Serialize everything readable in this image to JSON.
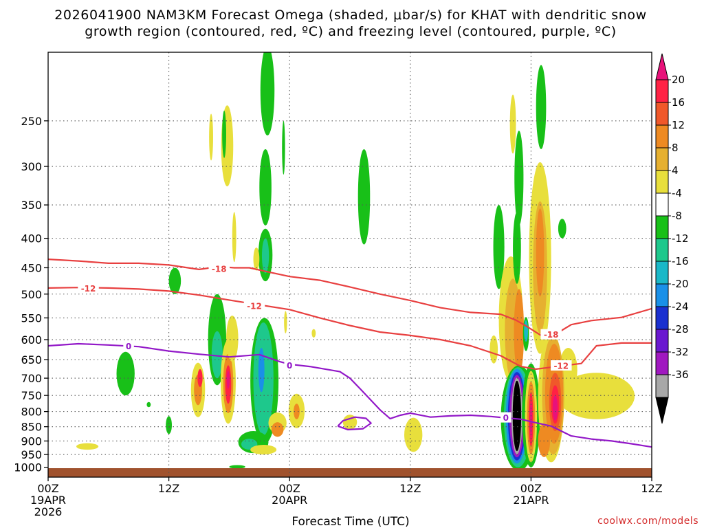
{
  "chart_data": {
    "type": "heatmap",
    "title_line1": "2026041900 NAM3KM Forecast Omega (shaded, μbar/s) for KHAT with dendritic snow",
    "title_line2": "growth region (contoured, red, ºC) and freezing level (contoured, purple, ºC)",
    "xlabel": "Forecast Time (UTC)",
    "credit": "coolwx.com/models",
    "x_axis": {
      "range_hours": [
        0,
        60
      ],
      "ticks": [
        {
          "hour": 0,
          "label": "00Z",
          "sub1": "19APR",
          "sub2": "2026"
        },
        {
          "hour": 12,
          "label": "12Z",
          "sub1": "",
          "sub2": ""
        },
        {
          "hour": 24,
          "label": "00Z",
          "sub1": "20APR",
          "sub2": ""
        },
        {
          "hour": 36,
          "label": "12Z",
          "sub1": "",
          "sub2": ""
        },
        {
          "hour": 48,
          "label": "00Z",
          "sub1": "21APR",
          "sub2": ""
        },
        {
          "hour": 60,
          "label": "12Z",
          "sub1": "",
          "sub2": ""
        }
      ]
    },
    "y_axis": {
      "scale": "log",
      "range_hpa": [
        1040,
        190
      ],
      "ticks": [
        250,
        300,
        350,
        400,
        450,
        500,
        550,
        600,
        650,
        700,
        750,
        800,
        850,
        900,
        950,
        1000
      ]
    },
    "colorbar": {
      "labels": [
        "20",
        "16",
        "12",
        "8",
        "4",
        "-4",
        "-8",
        "-12",
        "-16",
        "-20",
        "-24",
        "-28",
        "-32",
        "-36"
      ],
      "colors": [
        "#ff2244",
        "#f0582a",
        "#ee8a22",
        "#e6b030",
        "#e8df3c",
        "#ffffff",
        "#18c018",
        "#1ec88c",
        "#1ab8c8",
        "#1a90e8",
        "#1a30d0",
        "#6a18d0",
        "#a018c0",
        "#a8a8a8"
      ],
      "top_color": "#e8127a",
      "bottom_color": "#000000"
    },
    "series": [
      {
        "name": "-18",
        "color": "#e84040",
        "points": [
          [
            0,
            435
          ],
          [
            3,
            438
          ],
          [
            6,
            442
          ],
          [
            9,
            442
          ],
          [
            12,
            445
          ],
          [
            15,
            453
          ],
          [
            17,
            448
          ],
          [
            18.5,
            450
          ],
          [
            20,
            450
          ],
          [
            22,
            458
          ],
          [
            24,
            466
          ],
          [
            27,
            473
          ],
          [
            30,
            486
          ],
          [
            33,
            500
          ],
          [
            36,
            513
          ],
          [
            39,
            528
          ],
          [
            42,
            538
          ],
          [
            45,
            542
          ],
          [
            46.5,
            555
          ],
          [
            47.5,
            568
          ],
          [
            49,
            590
          ],
          [
            50.5,
            586
          ],
          [
            52,
            565
          ],
          [
            54,
            556
          ],
          [
            57,
            549
          ],
          [
            60,
            530
          ]
        ],
        "labels": [
          {
            "hour": 17,
            "hpa": 452
          },
          {
            "hour": 50,
            "hpa": 588
          }
        ]
      },
      {
        "name": "-12",
        "color": "#e84040",
        "points": [
          [
            0,
            488
          ],
          [
            3,
            487
          ],
          [
            6,
            488
          ],
          [
            9,
            490
          ],
          [
            12,
            494
          ],
          [
            15,
            502
          ],
          [
            18,
            512
          ],
          [
            21,
            522
          ],
          [
            24,
            532
          ],
          [
            27,
            550
          ],
          [
            30,
            567
          ],
          [
            33,
            582
          ],
          [
            36,
            590
          ],
          [
            39,
            600
          ],
          [
            42,
            615
          ],
          [
            45,
            640
          ],
          [
            47,
            668
          ],
          [
            48.5,
            675
          ],
          [
            50,
            670
          ],
          [
            51.5,
            665
          ],
          [
            53,
            660
          ],
          [
            54.5,
            615
          ],
          [
            57,
            608
          ],
          [
            60,
            608
          ]
        ],
        "labels": [
          {
            "hour": 4,
            "hpa": 489
          },
          {
            "hour": 20.5,
            "hpa": 524
          },
          {
            "hour": 51,
            "hpa": 666
          }
        ]
      },
      {
        "name": "0",
        "color": "#9218c8",
        "points": [
          [
            0,
            615
          ],
          [
            3,
            610
          ],
          [
            6,
            613
          ],
          [
            9,
            617
          ],
          [
            12,
            628
          ],
          [
            15,
            636
          ],
          [
            18,
            643
          ],
          [
            21,
            637
          ],
          [
            23,
            655
          ],
          [
            24,
            662
          ],
          [
            26,
            668
          ],
          [
            29,
            682
          ],
          [
            30,
            700
          ],
          [
            31,
            730
          ],
          [
            33,
            795
          ],
          [
            34,
            823
          ],
          [
            35,
            812
          ],
          [
            36,
            805
          ],
          [
            38,
            818
          ],
          [
            40,
            814
          ],
          [
            42,
            812
          ],
          [
            44,
            816
          ],
          [
            46,
            822
          ],
          [
            47,
            825
          ],
          [
            48,
            833
          ],
          [
            50,
            848
          ],
          [
            52,
            882
          ],
          [
            54,
            893
          ],
          [
            56,
            900
          ],
          [
            58,
            910
          ],
          [
            60,
            922
          ]
        ],
        "labels": [
          {
            "hour": 8,
            "hpa": 616
          },
          {
            "hour": 24,
            "hpa": 665
          },
          {
            "hour": 45.5,
            "hpa": 820
          }
        ]
      },
      {
        "name": "0 loop",
        "color": "#9218c8",
        "points": [
          [
            28.8,
            848
          ],
          [
            29.3,
            830
          ],
          [
            30.5,
            818
          ],
          [
            31.6,
            822
          ],
          [
            32.1,
            838
          ],
          [
            31.3,
            857
          ],
          [
            29.8,
            860
          ],
          [
            28.8,
            848
          ]
        ],
        "labels": []
      }
    ],
    "omega_cells": [
      {
        "hour": 7.7,
        "hpa": 690,
        "hw": 0.9,
        "hh": 60,
        "color": "#18c018"
      },
      {
        "hour": 12.6,
        "hpa": 475,
        "hw": 0.6,
        "hh": 25,
        "color": "#18c018"
      },
      {
        "hour": 3.9,
        "hpa": 920,
        "hw": 1.1,
        "hh": 12,
        "color": "#e8df3c"
      },
      {
        "hour": 10.0,
        "hpa": 778,
        "hw": 0.2,
        "hh": 8,
        "color": "#18c018"
      },
      {
        "hour": 12.0,
        "hpa": 845,
        "hw": 0.3,
        "hh": 30,
        "color": "#18c018"
      },
      {
        "hour": 14.9,
        "hpa": 738,
        "hw": 0.7,
        "hh": 80,
        "color": "#e8df3c"
      },
      {
        "hour": 14.9,
        "hpa": 735,
        "hw": 0.4,
        "hh": 45,
        "color": "#ee8a22"
      },
      {
        "hour": 15.1,
        "hpa": 700,
        "hw": 0.25,
        "hh": 25,
        "color": "#ff2244"
      },
      {
        "hour": 16.2,
        "hpa": 268,
        "hw": 0.2,
        "hh": 25,
        "color": "#e8df3c"
      },
      {
        "hour": 17.8,
        "hpa": 280,
        "hw": 0.6,
        "hh": 45,
        "color": "#e8df3c"
      },
      {
        "hour": 17.5,
        "hpa": 265,
        "hw": 0.2,
        "hh": 25,
        "color": "#18c018"
      },
      {
        "hour": 16.8,
        "hpa": 610,
        "hw": 0.9,
        "hh": 110,
        "color": "#18c018"
      },
      {
        "hour": 16.8,
        "hpa": 640,
        "hw": 0.55,
        "hh": 60,
        "color": "#1ec88c"
      },
      {
        "hour": 17.9,
        "hpa": 720,
        "hw": 0.75,
        "hh": 120,
        "color": "#e8df3c"
      },
      {
        "hour": 17.9,
        "hpa": 720,
        "hw": 0.5,
        "hh": 85,
        "color": "#ee8a22"
      },
      {
        "hour": 17.9,
        "hpa": 720,
        "hw": 0.3,
        "hh": 55,
        "color": "#ff2244"
      },
      {
        "hour": 17.9,
        "hpa": 705,
        "hw": 0.15,
        "hh": 25,
        "color": "#e8127a"
      },
      {
        "hour": 18.5,
        "hpa": 400,
        "hw": 0.2,
        "hh": 40,
        "color": "#e8df3c"
      },
      {
        "hour": 18.3,
        "hpa": 600,
        "hw": 0.6,
        "hh": 55,
        "color": "#e8df3c"
      },
      {
        "hour": 21.8,
        "hpa": 225,
        "hw": 0.7,
        "hh": 40,
        "color": "#18c018"
      },
      {
        "hour": 21.6,
        "hpa": 330,
        "hw": 0.6,
        "hh": 50,
        "color": "#18c018"
      },
      {
        "hour": 21.6,
        "hpa": 430,
        "hw": 0.7,
        "hh": 45,
        "color": "#18c018"
      },
      {
        "hour": 21.6,
        "hpa": 430,
        "hw": 0.35,
        "hh": 30,
        "color": "#1ec88c"
      },
      {
        "hour": 20.7,
        "hpa": 435,
        "hw": 0.3,
        "hh": 20,
        "color": "#e8df3c"
      },
      {
        "hour": 21.5,
        "hpa": 730,
        "hw": 1.4,
        "hh": 180,
        "color": "#18c018"
      },
      {
        "hour": 21.4,
        "hpa": 720,
        "hw": 1.0,
        "hh": 160,
        "color": "#1ec88c"
      },
      {
        "hour": 21.2,
        "hpa": 680,
        "hw": 0.3,
        "hh": 60,
        "color": "#1a90e8"
      },
      {
        "hour": 20.4,
        "hpa": 905,
        "hw": 1.5,
        "hh": 40,
        "color": "#18c018"
      },
      {
        "hour": 20.0,
        "hpa": 912,
        "hw": 0.8,
        "hh": 20,
        "color": "#1ec88c"
      },
      {
        "hour": 21.4,
        "hpa": 932,
        "hw": 1.3,
        "hh": 18,
        "color": "#e8df3c"
      },
      {
        "hour": 22.8,
        "hpa": 838,
        "hw": 0.9,
        "hh": 35,
        "color": "#e8df3c"
      },
      {
        "hour": 22.8,
        "hpa": 860,
        "hw": 0.6,
        "hh": 25,
        "color": "#ee8a22"
      },
      {
        "hour": 18.8,
        "hpa": 998,
        "hw": 0.8,
        "hh": 7,
        "color": "#18c018"
      },
      {
        "hour": 23.4,
        "hpa": 280,
        "hw": 0.15,
        "hh": 30,
        "color": "#18c018"
      },
      {
        "hour": 23.6,
        "hpa": 560,
        "hw": 0.15,
        "hh": 25,
        "color": "#e8df3c"
      },
      {
        "hour": 24.7,
        "hpa": 800,
        "hw": 0.8,
        "hh": 55,
        "color": "#e8df3c"
      },
      {
        "hour": 24.7,
        "hpa": 800,
        "hw": 0.3,
        "hh": 25,
        "color": "#ee8a22"
      },
      {
        "hour": 26.4,
        "hpa": 585,
        "hw": 0.2,
        "hh": 10,
        "color": "#e8df3c"
      },
      {
        "hour": 30.0,
        "hpa": 835,
        "hw": 0.7,
        "hh": 25,
        "color": "#e8df3c"
      },
      {
        "hour": 31.4,
        "hpa": 345,
        "hw": 0.6,
        "hh": 65,
        "color": "#18c018"
      },
      {
        "hour": 36.3,
        "hpa": 880,
        "hw": 0.9,
        "hh": 60,
        "color": "#e8df3c"
      },
      {
        "hour": 44.3,
        "hpa": 625,
        "hw": 0.4,
        "hh": 35,
        "color": "#e8df3c"
      },
      {
        "hour": 44.8,
        "hpa": 420,
        "hw": 0.55,
        "hh": 70,
        "color": "#18c018"
      },
      {
        "hour": 46.0,
        "hpa": 570,
        "hw": 1.2,
        "hh": 140,
        "color": "#e8df3c"
      },
      {
        "hour": 46.2,
        "hpa": 590,
        "hw": 0.8,
        "hh": 120,
        "color": "#e6b030"
      },
      {
        "hour": 46.8,
        "hpa": 590,
        "hw": 0.5,
        "hh": 100,
        "color": "#ee8a22"
      },
      {
        "hour": 46.2,
        "hpa": 255,
        "hw": 0.3,
        "hh": 30,
        "color": "#e8df3c"
      },
      {
        "hour": 46.8,
        "hpa": 320,
        "hw": 0.45,
        "hh": 60,
        "color": "#18c018"
      },
      {
        "hour": 46.6,
        "hpa": 420,
        "hw": 0.4,
        "hh": 60,
        "color": "#18c018"
      },
      {
        "hour": 47.5,
        "hpa": 588,
        "hw": 0.3,
        "hh": 40,
        "color": "#18c018"
      },
      {
        "hour": 47.5,
        "hpa": 580,
        "hw": 0.2,
        "hh": 25,
        "color": "#1ab8c8"
      },
      {
        "hour": 49.0,
        "hpa": 240,
        "hw": 0.5,
        "hh": 40,
        "color": "#18c018"
      },
      {
        "hour": 48.9,
        "hpa": 465,
        "hw": 1.1,
        "hh": 170,
        "color": "#e8df3c"
      },
      {
        "hour": 48.9,
        "hpa": 465,
        "hw": 0.7,
        "hh": 120,
        "color": "#e6b030"
      },
      {
        "hour": 48.9,
        "hpa": 430,
        "hw": 0.4,
        "hh": 75,
        "color": "#ee8a22"
      },
      {
        "hour": 51.1,
        "hpa": 385,
        "hw": 0.4,
        "hh": 15,
        "color": "#18c018"
      },
      {
        "hour": 51.7,
        "hpa": 680,
        "hw": 0.9,
        "hh": 60,
        "color": "#e8df3c"
      },
      {
        "hour": 54.5,
        "hpa": 755,
        "hw": 3.8,
        "hh": 70,
        "color": "#e8df3c"
      },
      {
        "hour": 46.8,
        "hpa": 840,
        "hw": 1.8,
        "hh": 175,
        "color": "#18c018"
      },
      {
        "hour": 46.7,
        "hpa": 835,
        "hw": 1.4,
        "hh": 165,
        "color": "#1ec88c"
      },
      {
        "hour": 46.6,
        "hpa": 830,
        "hw": 1.1,
        "hh": 155,
        "color": "#1a90e8"
      },
      {
        "hour": 46.6,
        "hpa": 828,
        "hw": 0.9,
        "hh": 145,
        "color": "#1a30d0"
      },
      {
        "hour": 46.6,
        "hpa": 826,
        "hw": 0.75,
        "hh": 135,
        "color": "#a018c0"
      },
      {
        "hour": 46.6,
        "hpa": 824,
        "hw": 0.55,
        "hh": 125,
        "color": "#a8a8a8"
      },
      {
        "hour": 46.6,
        "hpa": 822,
        "hw": 0.42,
        "hh": 115,
        "color": "#000000"
      },
      {
        "hour": 48.0,
        "hpa": 830,
        "hw": 0.9,
        "hh": 170,
        "color": "#18c018"
      },
      {
        "hour": 48.0,
        "hpa": 830,
        "hw": 0.6,
        "hh": 150,
        "color": "#e8df3c"
      },
      {
        "hour": 48.0,
        "hpa": 830,
        "hw": 0.4,
        "hh": 120,
        "color": "#ee8a22"
      },
      {
        "hour": 48.0,
        "hpa": 830,
        "hw": 0.22,
        "hh": 90,
        "color": "#ff2244"
      },
      {
        "hour": 48.0,
        "hpa": 830,
        "hw": 0.12,
        "hh": 60,
        "color": "#e8127a"
      },
      {
        "hour": 50.0,
        "hpa": 780,
        "hw": 1.3,
        "hh": 200,
        "color": "#e8df3c"
      },
      {
        "hour": 50.2,
        "hpa": 770,
        "hw": 1.1,
        "hh": 180,
        "color": "#e6b030"
      },
      {
        "hour": 50.3,
        "hpa": 760,
        "hw": 0.9,
        "hh": 150,
        "color": "#ee8a22"
      },
      {
        "hour": 50.4,
        "hpa": 775,
        "hw": 0.6,
        "hh": 90,
        "color": "#f0582a"
      },
      {
        "hour": 50.4,
        "hpa": 780,
        "hw": 0.4,
        "hh": 60,
        "color": "#ff2244"
      },
      {
        "hour": 50.4,
        "hpa": 790,
        "hw": 0.25,
        "hh": 40,
        "color": "#e8127a"
      },
      {
        "hour": 49.3,
        "hpa": 900,
        "hw": 0.6,
        "hh": 60,
        "color": "#ee8a22"
      }
    ]
  }
}
